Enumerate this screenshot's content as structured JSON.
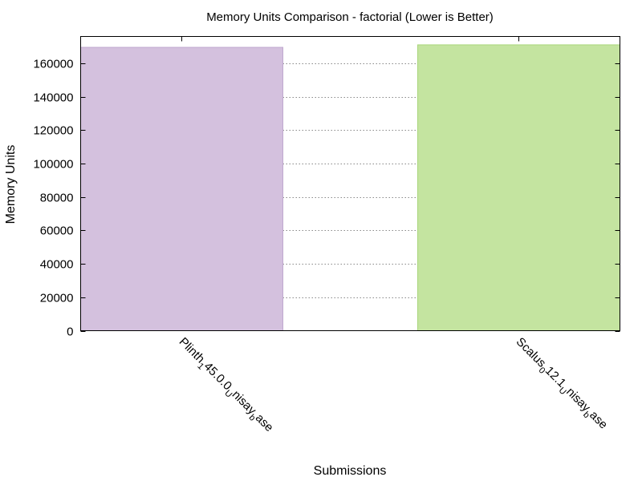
{
  "chart_data": {
    "type": "bar",
    "title": "Memory Units Comparison - factorial (Lower is Better)",
    "xlabel": "Submissions",
    "ylabel": "Memory Units",
    "ylim": [
      0,
      176000
    ],
    "yticks": [
      0,
      20000,
      40000,
      60000,
      80000,
      100000,
      120000,
      140000,
      160000
    ],
    "grid": true,
    "categories": [
      {
        "main": "Plinth",
        "sub": "1",
        "rest": "45.0.0",
        "sub2": "U",
        "rest2": "nisay",
        "sub3": "b",
        "rest3": "ase"
      },
      {
        "main": "Scalus",
        "sub": "0",
        "rest": "12.1",
        "sub2": "U",
        "rest2": "nisay",
        "sub3": "b",
        "rest3": "ase"
      }
    ],
    "values": [
      169500,
      171000
    ],
    "colors": [
      "#d4c1de",
      "#c4e4a0"
    ],
    "edge_colors": [
      "#c0a8cf",
      "#a9d67c"
    ]
  }
}
